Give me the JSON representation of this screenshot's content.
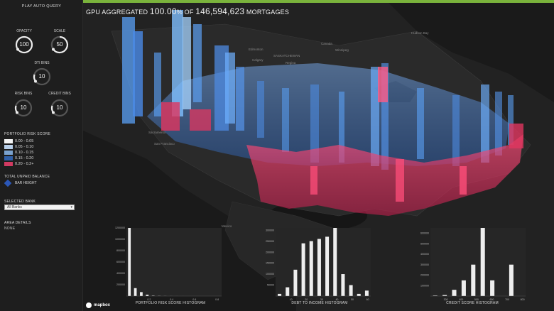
{
  "sidebar": {
    "play_label": "PLAY AUTO QUERY",
    "dials": {
      "opacity": {
        "label": "OPACITY",
        "value": "100"
      },
      "scale": {
        "label": "SCALE",
        "value": "50"
      },
      "dti_bins": {
        "label": "DTI BINS",
        "value": "10"
      },
      "risk_bins": {
        "label": "RISK BINS",
        "value": "10"
      },
      "credit_bins": {
        "label": "CREDIT BINS",
        "value": "10"
      }
    },
    "legend_title": "PORTFOLIO RISK SCORE",
    "legend": [
      {
        "label": "0.00 - 0.05",
        "color": "#f5f5f5"
      },
      {
        "label": "0.05 - 0.10",
        "color": "#b9d0ea"
      },
      {
        "label": "0.10 - 0.15",
        "color": "#7aa2cf"
      },
      {
        "label": "0.15 - 0.20",
        "color": "#2f5fa8"
      },
      {
        "label": "0.20 - 0.2+",
        "color": "#d13a61"
      }
    ],
    "balance_title": "TOTAL UNPAID BALANCE",
    "bar_height_label": "BAR HEIGHT",
    "bank_title": "SELECTED BANK",
    "bank_value": "All Banks",
    "area_title": "AREA DETAILS",
    "area_value": "NONE"
  },
  "header": {
    "prefix": "GPU AGGREGATED ",
    "percent": "100.00",
    "percent_sign": "%",
    "of": " OF ",
    "count": "146,594,623",
    "suffix": " MORTGAGES"
  },
  "map": {
    "places": [
      "Hudson Bay",
      "Canada",
      "Edmonton",
      "SASKATCHEWAN",
      "Winnipeg",
      "Calgary",
      "Regina",
      "Sacramento",
      "San Francisco",
      "Mexico"
    ]
  },
  "attribution": "mapbox",
  "chart_data": [
    {
      "type": "bar",
      "title": "PORTFOLIO RISK SCORE HISTOGRAM",
      "categories": [
        "0.05",
        "0.10",
        "0.15",
        "0.20",
        "0.25",
        "0.30",
        "0.35",
        "0.40",
        "0.45",
        "0.50",
        "0.55",
        "0.60",
        "0.65",
        "0.70",
        "0.75",
        "0.80"
      ],
      "values": [
        1200000,
        140000,
        70000,
        25000,
        8000,
        4000,
        2000,
        1000,
        500,
        300,
        200,
        100,
        100,
        0,
        0,
        0
      ],
      "xticks": [
        "0.2",
        "0.4",
        "0.6",
        "0.8"
      ],
      "yticks": [
        "200000",
        "400000",
        "600000",
        "800000",
        "1000000",
        "1200000"
      ],
      "ylim": [
        0,
        1200000
      ]
    },
    {
      "type": "bar",
      "title": "DEBT TO INCOME HISTOGRAM",
      "categories": [
        "5",
        "10",
        "15",
        "20",
        "25",
        "30",
        "35",
        "40",
        "45",
        "50",
        "55",
        "60"
      ],
      "values": [
        10000,
        40000,
        120000,
        240000,
        250000,
        260000,
        270000,
        310000,
        100000,
        50000,
        10000,
        25000
      ],
      "xticks": [
        "10",
        "20",
        "30",
        "40",
        "50",
        "60"
      ],
      "yticks": [
        "50000",
        "100000",
        "150000",
        "200000",
        "250000",
        "300000"
      ],
      "ylim": [
        0,
        310000
      ]
    },
    {
      "type": "bar",
      "title": "CREDIT SCORE HISTOGRAM",
      "categories": [
        "620",
        "640",
        "660",
        "680",
        "700",
        "720",
        "740",
        "760",
        "780",
        "800"
      ],
      "values": [
        5000,
        10000,
        60000,
        150000,
        300000,
        650000,
        150000,
        0,
        300000,
        0
      ],
      "xticks": [
        "300",
        "400",
        "500",
        "600",
        "700",
        "800"
      ],
      "yticks": [
        "100000",
        "200000",
        "300000",
        "400000",
        "500000",
        "600000"
      ],
      "ylim": [
        0,
        650000
      ]
    }
  ]
}
